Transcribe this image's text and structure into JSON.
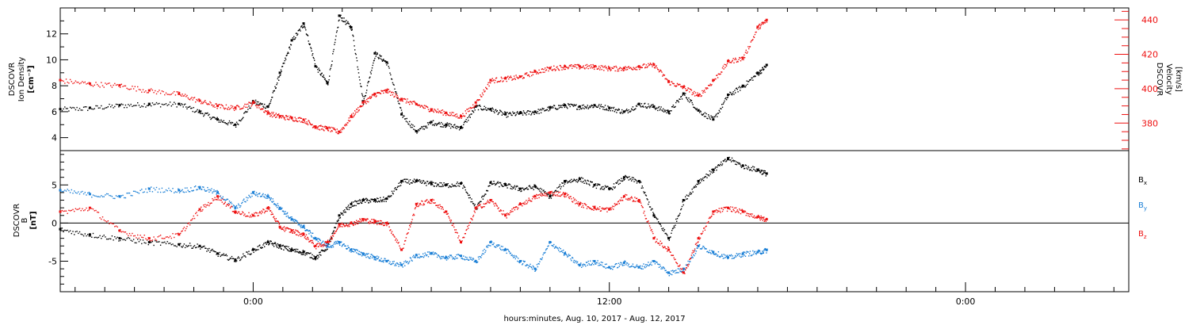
{
  "chart_data": [
    {
      "type": "scatter",
      "panel": "top",
      "ylabel": [
        "DSCOVR",
        "Ion Density",
        "[cm⁻³]"
      ],
      "ylim": [
        3,
        14
      ],
      "yticks": [
        "4",
        "6",
        "8",
        "10",
        "12"
      ],
      "ytick_values": [
        4,
        6,
        8,
        10,
        12
      ],
      "y2label": [
        "DSCOVR",
        "Velocity",
        "[km/s]"
      ],
      "y2lim": [
        364,
        447
      ],
      "y2ticks": [
        "380",
        "400",
        "420",
        "440"
      ],
      "y2tick_values": [
        380,
        400,
        420,
        440
      ],
      "series": [
        {
          "axis": "left",
          "color": "#000000",
          "x": [
            -6.5,
            -5.5,
            -4.5,
            -3.5,
            -2.5,
            -1.8,
            -1.2,
            -0.6,
            0,
            0.5,
            0.9,
            1.3,
            1.7,
            2.1,
            2.5,
            2.9,
            3.3,
            3.7,
            4.1,
            4.5,
            5.0,
            5.5,
            6.0,
            6.5,
            7.0,
            7.5,
            8.0,
            8.5,
            9.0,
            9.5,
            10.0,
            10.5,
            11.0,
            11.5,
            12.0,
            12.5,
            13.0,
            13.5,
            14.0,
            14.5,
            15.0,
            15.5,
            16.0,
            16.5,
            17.0,
            17.3
          ],
          "y": [
            6.2,
            6.3,
            6.5,
            6.6,
            6.6,
            6.0,
            5.4,
            5.0,
            6.8,
            6.4,
            9.0,
            11.5,
            12.8,
            9.5,
            8.2,
            13.4,
            12.5,
            6.8,
            10.5,
            9.8,
            5.8,
            4.5,
            5.2,
            5.0,
            4.8,
            6.4,
            6.2,
            5.8,
            5.9,
            6.0,
            6.3,
            6.5,
            6.4,
            6.5,
            6.3,
            6.0,
            6.6,
            6.4,
            6.0,
            7.4,
            6.1,
            5.4,
            7.3,
            8.0,
            9.0,
            9.6
          ]
        },
        {
          "axis": "right",
          "color": "#ee1111",
          "x": [
            -6.5,
            -5.5,
            -4.5,
            -3.5,
            -2.5,
            -1.8,
            -1.2,
            -0.6,
            0,
            0.5,
            0.9,
            1.3,
            1.7,
            2.1,
            2.5,
            2.9,
            3.3,
            3.7,
            4.1,
            4.5,
            5.0,
            5.5,
            6.0,
            6.5,
            7.0,
            7.5,
            8.0,
            8.5,
            9.0,
            9.5,
            10.0,
            10.5,
            11.0,
            11.5,
            12.0,
            12.5,
            13.0,
            13.5,
            14.0,
            14.5,
            15.0,
            15.5,
            16.0,
            16.5,
            17.0,
            17.3
          ],
          "y": [
            405,
            403,
            402,
            399,
            397,
            393,
            390,
            389,
            392,
            386,
            384,
            383,
            382,
            378,
            377,
            375,
            384,
            392,
            397,
            399,
            394,
            391,
            388,
            386,
            384,
            392,
            405,
            406,
            407,
            410,
            412,
            413,
            413,
            413,
            412,
            412,
            413,
            414,
            404,
            401,
            396,
            405,
            416,
            418,
            436,
            440
          ]
        }
      ]
    },
    {
      "type": "scatter",
      "panel": "bottom",
      "ylabel": [
        "DSCOVR",
        "B",
        "[nT]"
      ],
      "ylim": [
        -9,
        9.5
      ],
      "yticks": [
        "-5",
        "0",
        "5"
      ],
      "ytick_values": [
        -5,
        0,
        5
      ],
      "series": [
        {
          "name": "Bx",
          "color": "#000000",
          "x": [
            -6.5,
            -5.5,
            -4.5,
            -3.5,
            -2.5,
            -1.8,
            -1.2,
            -0.6,
            0,
            0.5,
            0.9,
            1.3,
            1.7,
            2.1,
            2.5,
            2.9,
            3.3,
            3.7,
            4.1,
            4.5,
            5.0,
            5.5,
            6.0,
            6.5,
            7.0,
            7.5,
            8.0,
            8.5,
            9.0,
            9.5,
            10.0,
            10.5,
            11.0,
            11.5,
            12.0,
            12.5,
            13.0,
            13.5,
            14.0,
            14.5,
            15.0,
            15.5,
            16.0,
            16.5,
            17.0,
            17.3
          ],
          "y": [
            -0.8,
            -1.5,
            -2.0,
            -2.5,
            -2.8,
            -3.0,
            -4.0,
            -4.8,
            -3.5,
            -2.5,
            -3.0,
            -3.5,
            -3.8,
            -4.5,
            -3.0,
            1.0,
            2.5,
            3.0,
            3.0,
            3.2,
            5.5,
            5.5,
            5.2,
            5.0,
            5.2,
            2.0,
            5.3,
            5.0,
            4.5,
            4.8,
            3.5,
            5.5,
            5.8,
            5.0,
            4.5,
            6.0,
            5.5,
            1.0,
            -2.0,
            3.0,
            5.5,
            7.0,
            8.5,
            7.5,
            7.0,
            6.5
          ]
        },
        {
          "name": "By",
          "color": "#1a7fd6",
          "x": [
            -6.5,
            -5.5,
            -4.5,
            -3.5,
            -2.5,
            -1.8,
            -1.2,
            -0.6,
            0,
            0.5,
            0.9,
            1.3,
            1.7,
            2.1,
            2.5,
            2.9,
            3.3,
            3.7,
            4.1,
            4.5,
            5.0,
            5.5,
            6.0,
            6.5,
            7.0,
            7.5,
            8.0,
            8.5,
            9.0,
            9.5,
            10.0,
            10.5,
            11.0,
            11.5,
            12.0,
            12.5,
            13.0,
            13.5,
            14.0,
            14.5,
            15.0,
            15.5,
            16.0,
            16.5,
            17.0,
            17.3
          ],
          "y": [
            4.3,
            3.8,
            3.5,
            4.5,
            4.3,
            4.7,
            4.0,
            2.0,
            4.0,
            3.5,
            2.0,
            0.5,
            -0.5,
            -2.0,
            -3.0,
            -2.5,
            -3.5,
            -4.0,
            -4.5,
            -5.0,
            -5.5,
            -4.2,
            -4.0,
            -4.5,
            -4.3,
            -5.0,
            -2.5,
            -3.5,
            -5.0,
            -6.0,
            -2.5,
            -4.0,
            -5.5,
            -5.0,
            -5.8,
            -5.2,
            -5.8,
            -5.0,
            -6.5,
            -6.0,
            -3.0,
            -3.8,
            -4.5,
            -4.0,
            -3.8,
            -3.5
          ]
        },
        {
          "name": "Bz",
          "color": "#ee1111",
          "x": [
            -6.5,
            -5.5,
            -4.5,
            -3.5,
            -2.5,
            -1.8,
            -1.2,
            -0.6,
            0,
            0.5,
            0.9,
            1.3,
            1.7,
            2.1,
            2.5,
            2.9,
            3.3,
            3.7,
            4.1,
            4.5,
            5.0,
            5.5,
            6.0,
            6.5,
            7.0,
            7.5,
            8.0,
            8.5,
            9.0,
            9.5,
            10.0,
            10.5,
            11.0,
            11.5,
            12.0,
            12.5,
            13.0,
            13.5,
            14.0,
            14.5,
            15.0,
            15.5,
            16.0,
            16.5,
            17.0,
            17.3
          ],
          "y": [
            1.5,
            2.0,
            -1.0,
            -2.0,
            -1.5,
            1.8,
            3.5,
            1.5,
            1.0,
            2.0,
            -0.5,
            -1.0,
            -1.5,
            -3.0,
            -2.5,
            -0.2,
            0.0,
            0.5,
            0.2,
            0.0,
            -3.5,
            2.5,
            3.0,
            1.5,
            -2.5,
            2.0,
            3.0,
            1.0,
            2.5,
            3.5,
            4.0,
            3.8,
            2.5,
            2.0,
            1.8,
            3.5,
            3.0,
            -2.0,
            -3.5,
            -6.5,
            -2.0,
            1.5,
            2.0,
            1.5,
            0.8,
            0.5
          ]
        }
      ],
      "zero_line": true
    }
  ],
  "xaxis": {
    "label": "hours:minutes, Aug. 10, 2017 - Aug. 12, 2017",
    "range_hours": [
      -6.5,
      29.5
    ],
    "tick_labels": [
      "0:00",
      "12:00",
      "0:00"
    ],
    "tick_values": [
      0,
      12,
      24
    ],
    "minor_step_hours": 1
  },
  "legend": {
    "placement": "right of bottom panel",
    "items": [
      {
        "label": "B",
        "sub": "x",
        "color": "#000000"
      },
      {
        "label": "B",
        "sub": "y",
        "color": "#1a7fd6"
      },
      {
        "label": "B",
        "sub": "z",
        "color": "#ee1111"
      }
    ]
  }
}
